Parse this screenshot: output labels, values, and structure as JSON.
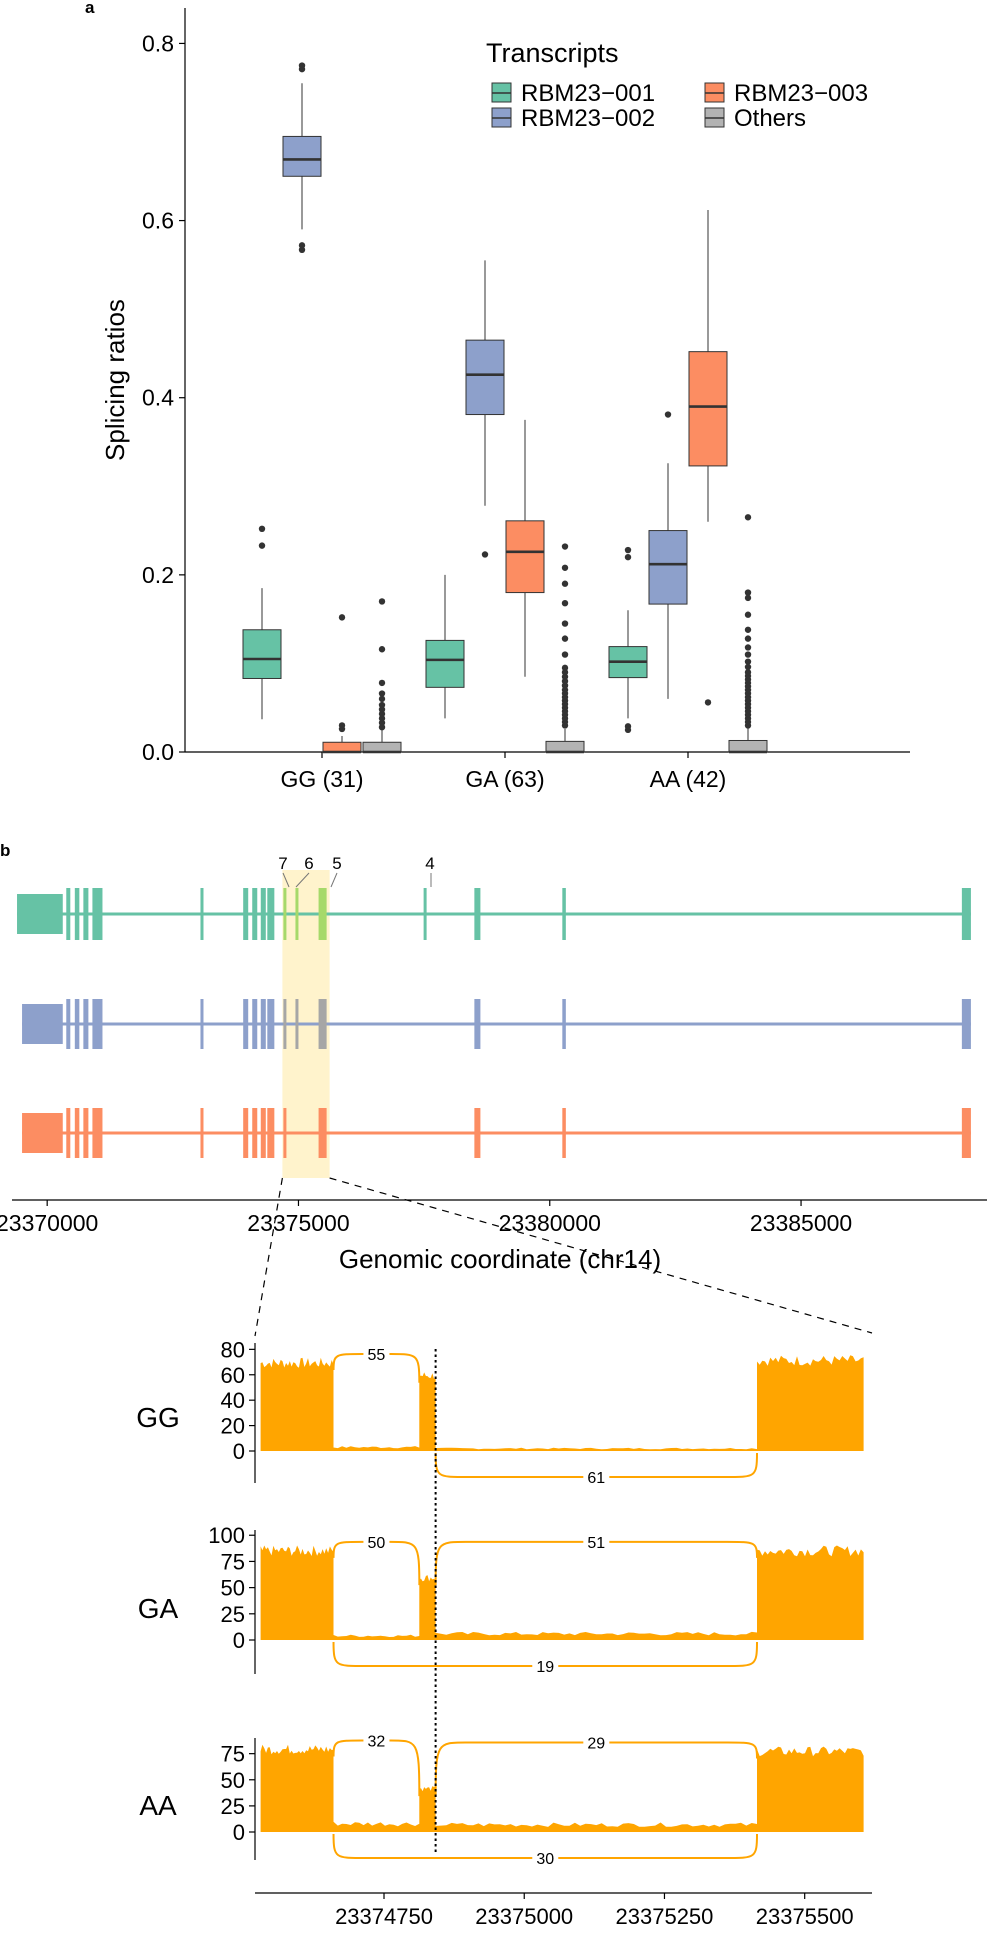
{
  "panel_labels": {
    "a": "a",
    "b": "b"
  },
  "colors": {
    "RBM23-001": "#66c2a5",
    "RBM23-002": "#8da0cb",
    "RBM23-003": "#fc8d62",
    "Others": "#b3b3b3",
    "highlight": "#fff3cc",
    "coverage": "#ffa500",
    "grey_exon": "#a6a6a6",
    "light_green_exon": "#a6d96a"
  },
  "chart_data": [
    {
      "type": "box",
      "panel": "a",
      "ylabel": "Splicing ratios",
      "ylim": [
        0,
        0.84
      ],
      "yticks": [
        0.0,
        0.2,
        0.4,
        0.6,
        0.8
      ],
      "ytick_labels": [
        "0.0",
        "0.2",
        "0.4",
        "0.6",
        "0.8"
      ],
      "categories": [
        "GG (31)",
        "GA (63)",
        "AA (42)"
      ],
      "legend": {
        "title": "Transcripts",
        "placement": "top-right",
        "entries": [
          "RBM23−001",
          "RBM23−002",
          "RBM23−003",
          "Others"
        ]
      },
      "series": [
        {
          "name": "RBM23-001",
          "boxes": [
            {
              "q1": 0.083,
              "median": 0.105,
              "q3": 0.138,
              "lo": 0.037,
              "hi": 0.185,
              "outliers": [
                0.233,
                0.252
              ]
            },
            {
              "q1": 0.073,
              "median": 0.104,
              "q3": 0.126,
              "lo": 0.038,
              "hi": 0.2,
              "outliers": []
            },
            {
              "q1": 0.084,
              "median": 0.102,
              "q3": 0.119,
              "lo": 0.038,
              "hi": 0.16,
              "outliers": [
                0.025,
                0.029,
                0.22,
                0.228
              ]
            }
          ]
        },
        {
          "name": "RBM23-002",
          "boxes": [
            {
              "q1": 0.65,
              "median": 0.669,
              "q3": 0.695,
              "lo": 0.59,
              "hi": 0.755,
              "outliers": [
                0.567,
                0.572,
                0.771,
                0.775
              ]
            },
            {
              "q1": 0.381,
              "median": 0.426,
              "q3": 0.465,
              "lo": 0.278,
              "hi": 0.555,
              "outliers": [
                0.223
              ]
            },
            {
              "q1": 0.167,
              "median": 0.212,
              "q3": 0.25,
              "lo": 0.06,
              "hi": 0.326,
              "outliers": [
                0.381
              ]
            }
          ]
        },
        {
          "name": "RBM23-003",
          "boxes": [
            {
              "q1": 0.0,
              "median": 0.0,
              "q3": 0.011,
              "lo": 0.0,
              "hi": 0.018,
              "outliers": [
                0.026,
                0.03,
                0.152
              ]
            },
            {
              "q1": 0.18,
              "median": 0.226,
              "q3": 0.261,
              "lo": 0.085,
              "hi": 0.375,
              "outliers": []
            },
            {
              "q1": 0.323,
              "median": 0.39,
              "q3": 0.452,
              "lo": 0.26,
              "hi": 0.612,
              "outliers": [
                0.056
              ]
            }
          ]
        },
        {
          "name": "Others",
          "boxes": [
            {
              "q1": 0.0,
              "median": 0.0,
              "q3": 0.011,
              "lo": 0.0,
              "hi": 0.025,
              "outliers": [
                0.028,
                0.033,
                0.038,
                0.043,
                0.048,
                0.053,
                0.06,
                0.066,
                0.078,
                0.116,
                0.17
              ]
            },
            {
              "q1": 0.0,
              "median": 0.0,
              "q3": 0.012,
              "lo": 0.0,
              "hi": 0.026,
              "outliers": [
                0.03,
                0.034,
                0.038,
                0.042,
                0.046,
                0.05,
                0.054,
                0.058,
                0.062,
                0.066,
                0.07,
                0.075,
                0.08,
                0.085,
                0.09,
                0.095,
                0.11,
                0.128,
                0.145,
                0.168,
                0.19,
                0.208,
                0.232
              ]
            },
            {
              "q1": 0.0,
              "median": 0.0,
              "q3": 0.013,
              "lo": 0.0,
              "hi": 0.027,
              "outliers": [
                0.03,
                0.034,
                0.038,
                0.042,
                0.046,
                0.05,
                0.054,
                0.058,
                0.062,
                0.066,
                0.07,
                0.074,
                0.078,
                0.082,
                0.086,
                0.09,
                0.096,
                0.102,
                0.11,
                0.118,
                0.128,
                0.138,
                0.155,
                0.174,
                0.18,
                0.265
              ]
            }
          ]
        }
      ]
    },
    {
      "type": "gene_model",
      "panel": "b",
      "xlabel": "Genomic coordinate (chr14)",
      "xlim": [
        23369300,
        23388700
      ],
      "xticks": [
        23370000,
        23375000,
        23380000,
        23385000
      ],
      "xtick_labels": [
        "23370000",
        "23375000",
        "23380000",
        "23385000"
      ],
      "highlight_region": [
        23374680,
        23375620
      ],
      "exon_labels": [
        {
          "label": "7",
          "position": 23374720
        },
        {
          "label": "6",
          "position": 23374960
        },
        {
          "label": "5",
          "position": 23375480
        },
        {
          "label": "4",
          "position": 23377500
        }
      ],
      "transcripts": [
        {
          "name": "RBM23-001",
          "start": 23369400,
          "end": 23388380,
          "exons": [
            {
              "start": 23369400,
              "end": 23370310,
              "type": "utr"
            },
            {
              "start": 23370380,
              "end": 23370460
            },
            {
              "start": 23370550,
              "end": 23370640
            },
            {
              "start": 23370720,
              "end": 23370820
            },
            {
              "start": 23370900,
              "end": 23371100
            },
            {
              "start": 23373050,
              "end": 23373110
            },
            {
              "start": 23373900,
              "end": 23374000
            },
            {
              "start": 23374080,
              "end": 23374180
            },
            {
              "start": 23374250,
              "end": 23374350
            },
            {
              "start": 23374380,
              "end": 23374520
            },
            {
              "start": 23374700,
              "end": 23374760,
              "color": "light"
            },
            {
              "start": 23374940,
              "end": 23374990,
              "color": "light"
            },
            {
              "start": 23375400,
              "end": 23375560,
              "color": "light"
            },
            {
              "start": 23377490,
              "end": 23377540
            },
            {
              "start": 23378500,
              "end": 23378620
            },
            {
              "start": 23380250,
              "end": 23380320
            },
            {
              "start": 23388200,
              "end": 23388380
            }
          ]
        },
        {
          "name": "RBM23-002",
          "start": 23369500,
          "end": 23388380,
          "exons": [
            {
              "start": 23369500,
              "end": 23370310,
              "type": "utr"
            },
            {
              "start": 23370380,
              "end": 23370460
            },
            {
              "start": 23370550,
              "end": 23370640
            },
            {
              "start": 23370720,
              "end": 23370820
            },
            {
              "start": 23370900,
              "end": 23371100
            },
            {
              "start": 23373050,
              "end": 23373110
            },
            {
              "start": 23373900,
              "end": 23374000
            },
            {
              "start": 23374080,
              "end": 23374180
            },
            {
              "start": 23374250,
              "end": 23374350
            },
            {
              "start": 23374380,
              "end": 23374520
            },
            {
              "start": 23374700,
              "end": 23374760,
              "color": "grey"
            },
            {
              "start": 23374940,
              "end": 23374990,
              "color": "grey"
            },
            {
              "start": 23375400,
              "end": 23375560,
              "color": "grey"
            },
            {
              "start": 23378500,
              "end": 23378620
            },
            {
              "start": 23380250,
              "end": 23380320
            },
            {
              "start": 23388200,
              "end": 23388380
            }
          ]
        },
        {
          "name": "RBM23-003",
          "start": 23369500,
          "end": 23388380,
          "exons": [
            {
              "start": 23369500,
              "end": 23370310,
              "type": "utr"
            },
            {
              "start": 23370380,
              "end": 23370460
            },
            {
              "start": 23370550,
              "end": 23370640
            },
            {
              "start": 23370720,
              "end": 23370820
            },
            {
              "start": 23370900,
              "end": 23371100
            },
            {
              "start": 23373050,
              "end": 23373110
            },
            {
              "start": 23373900,
              "end": 23374000
            },
            {
              "start": 23374080,
              "end": 23374180
            },
            {
              "start": 23374250,
              "end": 23374350
            },
            {
              "start": 23374380,
              "end": 23374520
            },
            {
              "start": 23374700,
              "end": 23374760
            },
            {
              "start": 23375400,
              "end": 23375560
            },
            {
              "start": 23378500,
              "end": 23378620
            },
            {
              "start": 23380250,
              "end": 23380320
            },
            {
              "start": 23388200,
              "end": 23388380
            }
          ]
        }
      ]
    },
    {
      "type": "sashimi",
      "panel": "b",
      "xlim": [
        23374520,
        23375620
      ],
      "xticks": [
        23374750,
        23375000,
        23375250,
        23375500
      ],
      "xtick_labels": [
        "23374750",
        "23375000",
        "23375250",
        "23375500"
      ],
      "splice_site_marker": 23374842,
      "exon_regions": [
        [
          23374530,
          23374660
        ],
        [
          23374813,
          23374842
        ],
        [
          23375415,
          23375605
        ]
      ],
      "tracks": [
        {
          "genotype": "GG",
          "ylim": [
            0,
            85
          ],
          "yticks": [
            0,
            20,
            40,
            60,
            80
          ],
          "ytick_labels": [
            "0",
            "20",
            "40",
            "60",
            "80"
          ],
          "exon_cov": [
            70,
            60,
            72
          ],
          "intron_cov": [
            3,
            2
          ],
          "junctions": [
            {
              "from": 23374660,
              "to": 23374813,
              "count": "55",
              "side": "above"
            },
            {
              "from": 23374842,
              "to": 23375415,
              "count": "61",
              "side": "below"
            }
          ]
        },
        {
          "genotype": "GA",
          "ylim": [
            0,
            105
          ],
          "yticks": [
            0,
            25,
            50,
            75,
            100
          ],
          "ytick_labels": [
            "0",
            "25",
            "50",
            "75",
            "100"
          ],
          "exon_cov": [
            86,
            60,
            86
          ],
          "intron_cov": [
            4,
            6
          ],
          "junctions": [
            {
              "from": 23374660,
              "to": 23374813,
              "count": "50",
              "side": "above"
            },
            {
              "from": 23374842,
              "to": 23375415,
              "count": "51",
              "side": "above"
            },
            {
              "from": 23374660,
              "to": 23375415,
              "count": "19",
              "side": "below"
            }
          ]
        },
        {
          "genotype": "AA",
          "ylim": [
            0,
            90
          ],
          "yticks": [
            0,
            25,
            50,
            75
          ],
          "ytick_labels": [
            "0",
            "25",
            "50",
            "75"
          ],
          "exon_cov": [
            80,
            42,
            78
          ],
          "intron_cov": [
            8,
            7
          ],
          "junctions": [
            {
              "from": 23374660,
              "to": 23374813,
              "count": "32",
              "side": "above"
            },
            {
              "from": 23374842,
              "to": 23375415,
              "count": "29",
              "side": "above"
            },
            {
              "from": 23374660,
              "to": 23375415,
              "count": "30",
              "side": "below"
            }
          ]
        }
      ]
    }
  ]
}
